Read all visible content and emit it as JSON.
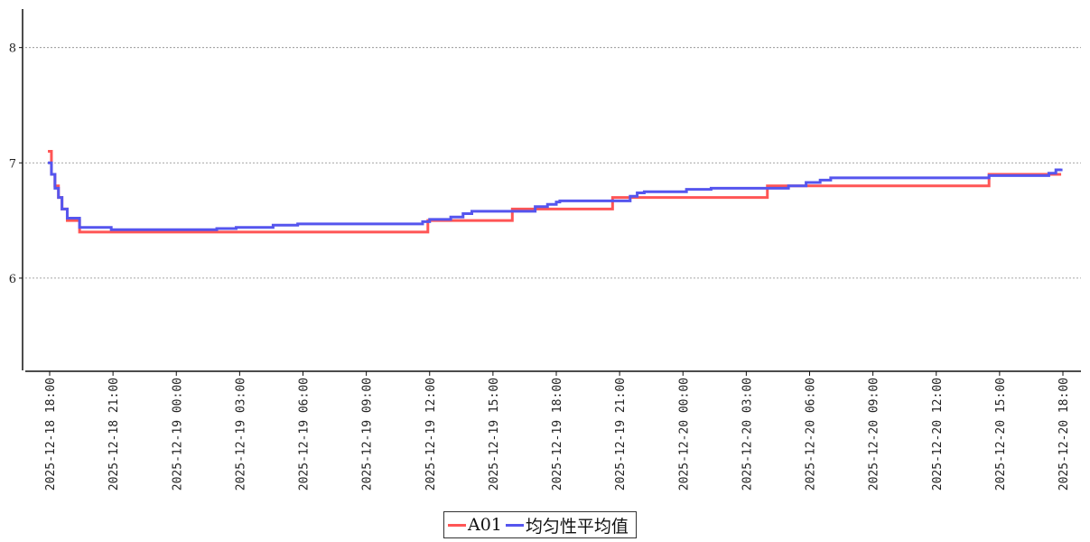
{
  "chart_data": {
    "type": "line",
    "step": true,
    "title": "",
    "xlabel": "",
    "ylabel": "",
    "ylim": [
      5.2,
      8.35
    ],
    "xlim": [
      "2025-12-18 18:00",
      "2025-12-20 18:00"
    ],
    "grid": "horizontal-dashed",
    "y_ticks": [
      6,
      7,
      8
    ],
    "x_ticks": [
      "2025-12-18 18:00",
      "2025-12-18 21:00",
      "2025-12-19 00:00",
      "2025-12-19 03:00",
      "2025-12-19 06:00",
      "2025-12-19 09:00",
      "2025-12-19 12:00",
      "2025-12-19 15:00",
      "2025-12-19 18:00",
      "2025-12-19 21:00",
      "2025-12-20 00:00",
      "2025-12-20 03:00",
      "2025-12-20 06:00",
      "2025-12-20 09:00",
      "2025-12-20 12:00",
      "2025-12-20 15:00",
      "2025-12-20 18:00"
    ],
    "legend_position": "bottom-center",
    "series": [
      {
        "name": "A01",
        "color": "#ff5555",
        "points": [
          [
            "2025-12-18 17:55",
            7.1
          ],
          [
            "2025-12-18 18:05",
            6.9
          ],
          [
            "2025-12-18 18:15",
            6.8
          ],
          [
            "2025-12-18 18:25",
            6.7
          ],
          [
            "2025-12-18 18:35",
            6.6
          ],
          [
            "2025-12-18 18:50",
            6.5
          ],
          [
            "2025-12-18 19:25",
            6.4
          ],
          [
            "2025-12-19 11:55",
            6.5
          ],
          [
            "2025-12-19 15:55",
            6.6
          ],
          [
            "2025-12-19 20:40",
            6.7
          ],
          [
            "2025-12-20 04:00",
            6.8
          ],
          [
            "2025-12-20 14:30",
            6.9
          ],
          [
            "2025-12-20 17:55",
            6.9
          ]
        ]
      },
      {
        "name": "均匀性平均值",
        "color": "#5555ee",
        "points": [
          [
            "2025-12-18 17:55",
            7.0
          ],
          [
            "2025-12-18 18:05",
            6.9
          ],
          [
            "2025-12-18 18:15",
            6.78
          ],
          [
            "2025-12-18 18:25",
            6.7
          ],
          [
            "2025-12-18 18:35",
            6.6
          ],
          [
            "2025-12-18 18:50",
            6.52
          ],
          [
            "2025-12-18 19:25",
            6.44
          ],
          [
            "2025-12-18 20:55",
            6.42
          ],
          [
            "2025-12-19 01:55",
            6.43
          ],
          [
            "2025-12-19 02:50",
            6.44
          ],
          [
            "2025-12-19 04:35",
            6.46
          ],
          [
            "2025-12-19 05:45",
            6.47
          ],
          [
            "2025-12-19 11:40",
            6.49
          ],
          [
            "2025-12-19 12:00",
            6.51
          ],
          [
            "2025-12-19 13:00",
            6.53
          ],
          [
            "2025-12-19 13:35",
            6.56
          ],
          [
            "2025-12-19 14:00",
            6.58
          ],
          [
            "2025-12-19 17:00",
            6.62
          ],
          [
            "2025-12-19 17:35",
            6.64
          ],
          [
            "2025-12-19 18:00",
            6.66
          ],
          [
            "2025-12-19 18:10",
            6.67
          ],
          [
            "2025-12-19 21:30",
            6.71
          ],
          [
            "2025-12-19 21:50",
            6.74
          ],
          [
            "2025-12-19 22:10",
            6.75
          ],
          [
            "2025-12-20 00:10",
            6.77
          ],
          [
            "2025-12-20 01:20",
            6.78
          ],
          [
            "2025-12-20 05:00",
            6.8
          ],
          [
            "2025-12-20 05:50",
            6.83
          ],
          [
            "2025-12-20 06:30",
            6.85
          ],
          [
            "2025-12-20 07:00",
            6.87
          ],
          [
            "2025-12-20 14:30",
            6.89
          ],
          [
            "2025-12-20 17:20",
            6.91
          ],
          [
            "2025-12-20 17:40",
            6.94
          ],
          [
            "2025-12-20 17:55",
            6.95
          ]
        ]
      }
    ]
  }
}
